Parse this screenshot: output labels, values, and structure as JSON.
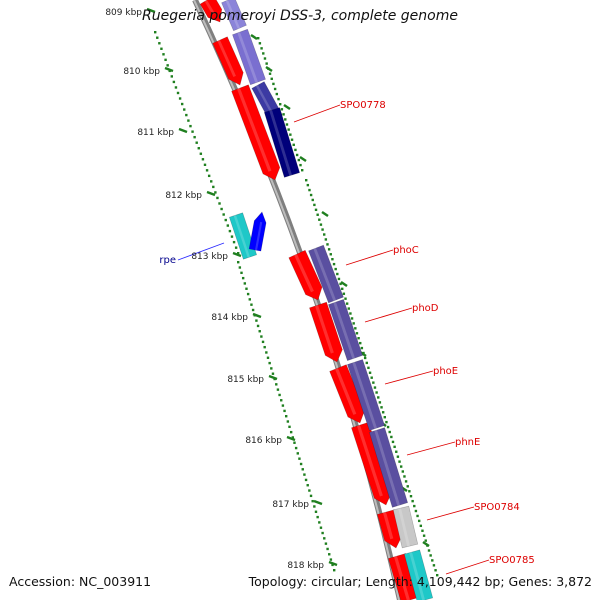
{
  "title": "Ruegeria pomeroyi DSS-3, complete genome",
  "footer": {
    "accession": "Accession: NC_003911",
    "summary": "Topology: circular; Length: 4,109,442 bp; Genes: 3,872"
  },
  "colors": {
    "backbone": "#7f7f7f",
    "tick": "#1f7f1f",
    "forward_gene": "#ff0000",
    "operon_purple": "#5a4fa0",
    "navy": "#00007a",
    "cyan": "#1ec8c8",
    "blue": "#0000ff",
    "gray_gene": "#c8c8c8",
    "label_red": "#dd0000",
    "label_blue": "#00008b"
  },
  "kbp_labels": [
    "809 kbp",
    "810 kbp",
    "811 kbp",
    "812 kbp",
    "813 kbp",
    "814 kbp",
    "815 kbp",
    "816 kbp",
    "817 kbp",
    "818 kbp"
  ],
  "gene_labels": [
    {
      "text": "SPO0778",
      "color": "red"
    },
    {
      "text": "phoC",
      "color": "red"
    },
    {
      "text": "phoD",
      "color": "red"
    },
    {
      "text": "phoE",
      "color": "red"
    },
    {
      "text": "phnE",
      "color": "red"
    },
    {
      "text": "SPO0784",
      "color": "red"
    },
    {
      "text": "SPO0785",
      "color": "red"
    },
    {
      "text": "rpe",
      "color": "blue"
    }
  ]
}
